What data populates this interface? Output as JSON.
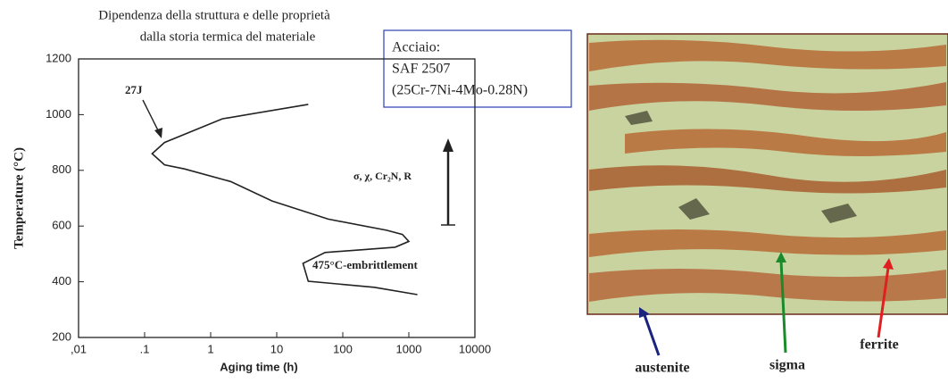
{
  "slide_title": [
    "Dipendenza della struttura e delle proprietà",
    "dalla storia termica del materiale"
  ],
  "material_box": [
    "Acciaio:",
    "SAF 2507",
    "(25Cr-7Ni-4Mo-0.28N)"
  ],
  "chart_data": {
    "type": "line",
    "x_label": "Aging time (h)",
    "y_label": "Temperature (°C)",
    "x": [
      30,
      1.5,
      0.2,
      0.13,
      0.2,
      0.4,
      2,
      8.5,
      60,
      460,
      800,
      1000,
      620,
      200,
      54,
      25,
      30,
      300,
      1350
    ],
    "values": [
      1037,
      985,
      900,
      860,
      820,
      805,
      760,
      690,
      625,
      585,
      570,
      545,
      524,
      515,
      505,
      466,
      402,
      380,
      354
    ],
    "color": "#222222",
    "log_x": true,
    "xlim": [
      0.01,
      10000
    ],
    "ylim": [
      200,
      1200
    ],
    "xticks": [
      {
        "value": 0.01,
        "label": ",01"
      },
      {
        "value": 0.1,
        "label": ".1"
      },
      1,
      10,
      100,
      1000,
      10000
    ],
    "yticks": [
      200,
      400,
      600,
      800,
      1000,
      1200
    ],
    "annotations": [
      "27J",
      "σ, χ, Cr₂N, R",
      "475°C-embrittlement"
    ]
  },
  "micrograph": {
    "labels": [
      "austenite",
      "sigma",
      "ferrite"
    ]
  }
}
